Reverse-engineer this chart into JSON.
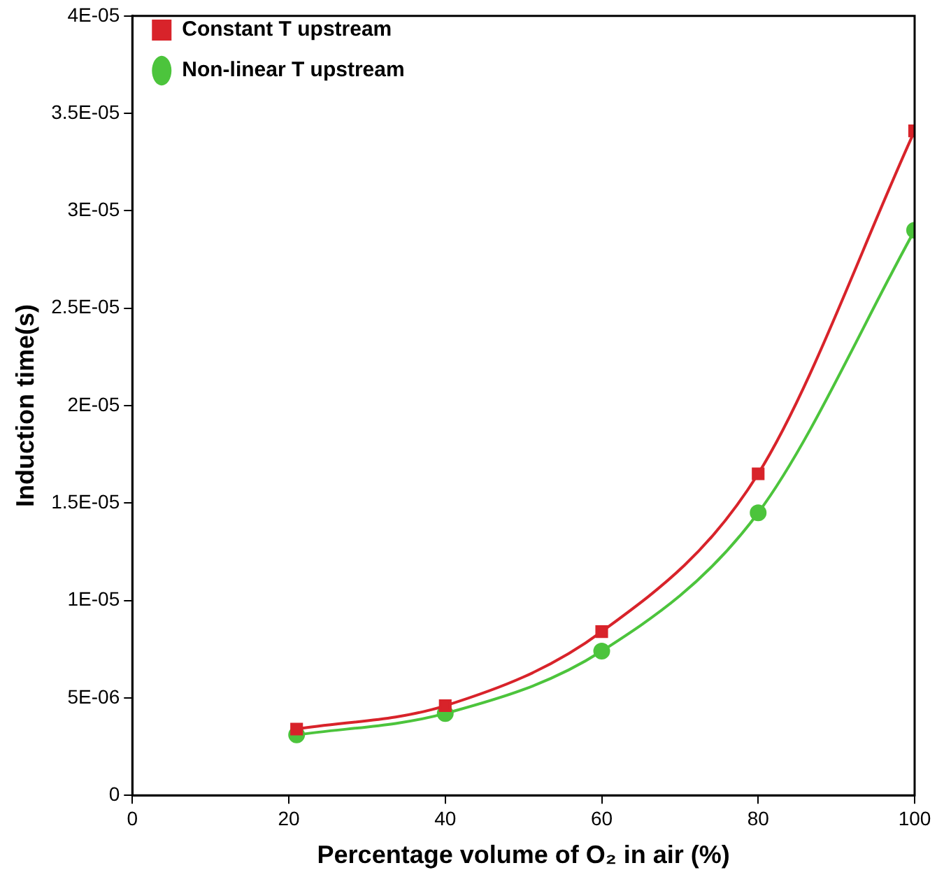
{
  "chart_data": {
    "type": "line",
    "xlabel": "Percentage volume of O₂ in air (%)",
    "ylabel": "Induction time(s)",
    "x": [
      21,
      40,
      60,
      80,
      100
    ],
    "series": [
      {
        "name": "Constant T upstream",
        "color": "#d8232a",
        "marker": "square",
        "values": [
          3.4e-06,
          4.6e-06,
          8.4e-06,
          1.65e-05,
          3.41e-05
        ]
      },
      {
        "name": "Non-linear T upstream",
        "color": "#4cc43c",
        "marker": "circle",
        "values": [
          3.1e-06,
          4.2e-06,
          7.4e-06,
          1.45e-05,
          2.9e-05
        ]
      }
    ],
    "xlim": [
      0,
      100
    ],
    "xticks": [
      0,
      20,
      40,
      60,
      80,
      100
    ],
    "ylim": [
      0,
      4e-05
    ],
    "yticks": [
      {
        "value": 0,
        "label": "0"
      },
      {
        "value": 5e-06,
        "label": "5E-06"
      },
      {
        "value": 1e-05,
        "label": "1E-05"
      },
      {
        "value": 1.5e-05,
        "label": "1.5E-05"
      },
      {
        "value": 2e-05,
        "label": "2E-05"
      },
      {
        "value": 2.5e-05,
        "label": "2.5E-05"
      },
      {
        "value": 3e-05,
        "label": "3E-05"
      },
      {
        "value": 3.5e-05,
        "label": "3.5E-05"
      },
      {
        "value": 4e-05,
        "label": "4E-05"
      }
    ],
    "grid": false,
    "legend": "top left",
    "line_style": "solid"
  }
}
